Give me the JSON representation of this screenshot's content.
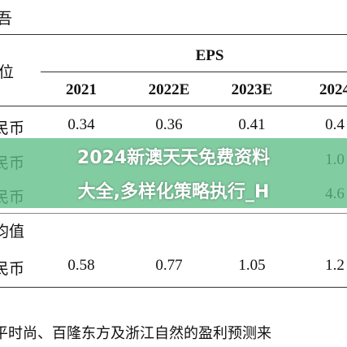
{
  "header": {
    "corner": "吾",
    "unit_label": "位",
    "group_label": "EPS"
  },
  "table": {
    "columns": [
      "2021",
      "2022E",
      "2023E",
      "2024"
    ],
    "rows": [
      [
        "民币",
        "0.34",
        "0.36",
        "0.41",
        "0.4"
      ],
      [
        "民币",
        "",
        "",
        "",
        "1.0"
      ],
      [
        "民币",
        "",
        "",
        "",
        "4.6"
      ],
      [
        "均值",
        "",
        "",
        "",
        ""
      ],
      [
        "民币",
        "0.58",
        "0.77",
        "1.05",
        "1.2"
      ]
    ]
  },
  "footnote": "平时尚、百隆东方及浙江自然的盈利预测来",
  "banner": {
    "line1": "2024新澳天天免费资料",
    "line2": "大全,多样化策略执行_H"
  }
}
